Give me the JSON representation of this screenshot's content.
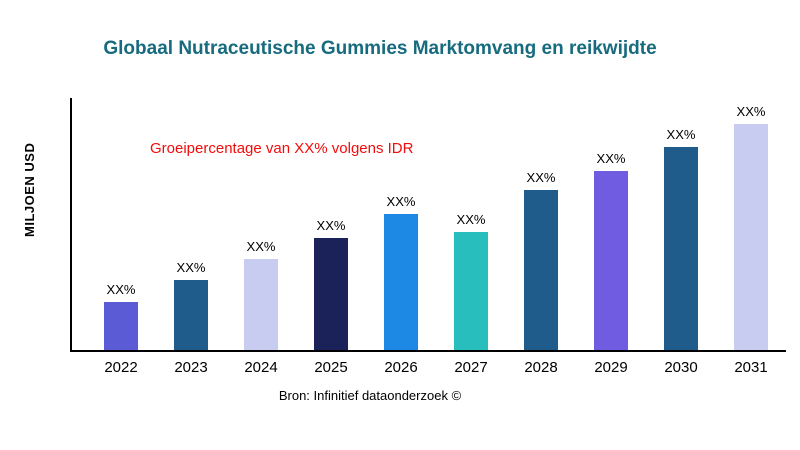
{
  "title": "Globaal Nutraceutische Gummies Marktomvang en reikwijdte",
  "annotation": "Groeipercentage van XX% volgens IDR",
  "source": "Bron: Infinitief dataonderzoek ©",
  "chart_data": {
    "type": "bar",
    "title": "Globaal Nutraceutische Gummies Marktomvang en reikwijdte",
    "xlabel": "",
    "ylabel": "MILJOEN USD",
    "categories": [
      "2022",
      "2023",
      "2024",
      "2025",
      "2026",
      "2027",
      "2028",
      "2029",
      "2030",
      "2031"
    ],
    "values": [
      50,
      72,
      94,
      116,
      140,
      122,
      165,
      185,
      209,
      233
    ],
    "bar_labels": [
      "XX%",
      "XX%",
      "XX%",
      "XX%",
      "XX%",
      "XX%",
      "XX%",
      "XX%",
      "XX%",
      "XX%"
    ],
    "bar_colors": [
      "#5B5BD6",
      "#1F5C8B",
      "#C9CCF1",
      "#1A2259",
      "#1E88E5",
      "#29BEBE",
      "#1F5C8B",
      "#6F5CE0",
      "#1F5C8B",
      "#C9CCF1"
    ],
    "ylim": [
      0,
      260
    ],
    "grid": false,
    "legend": "none",
    "title_color": "#176B7E",
    "annotation_color": "#F40B0B",
    "annotation_text": "Groeipercentage van XX% volgens IDR"
  }
}
